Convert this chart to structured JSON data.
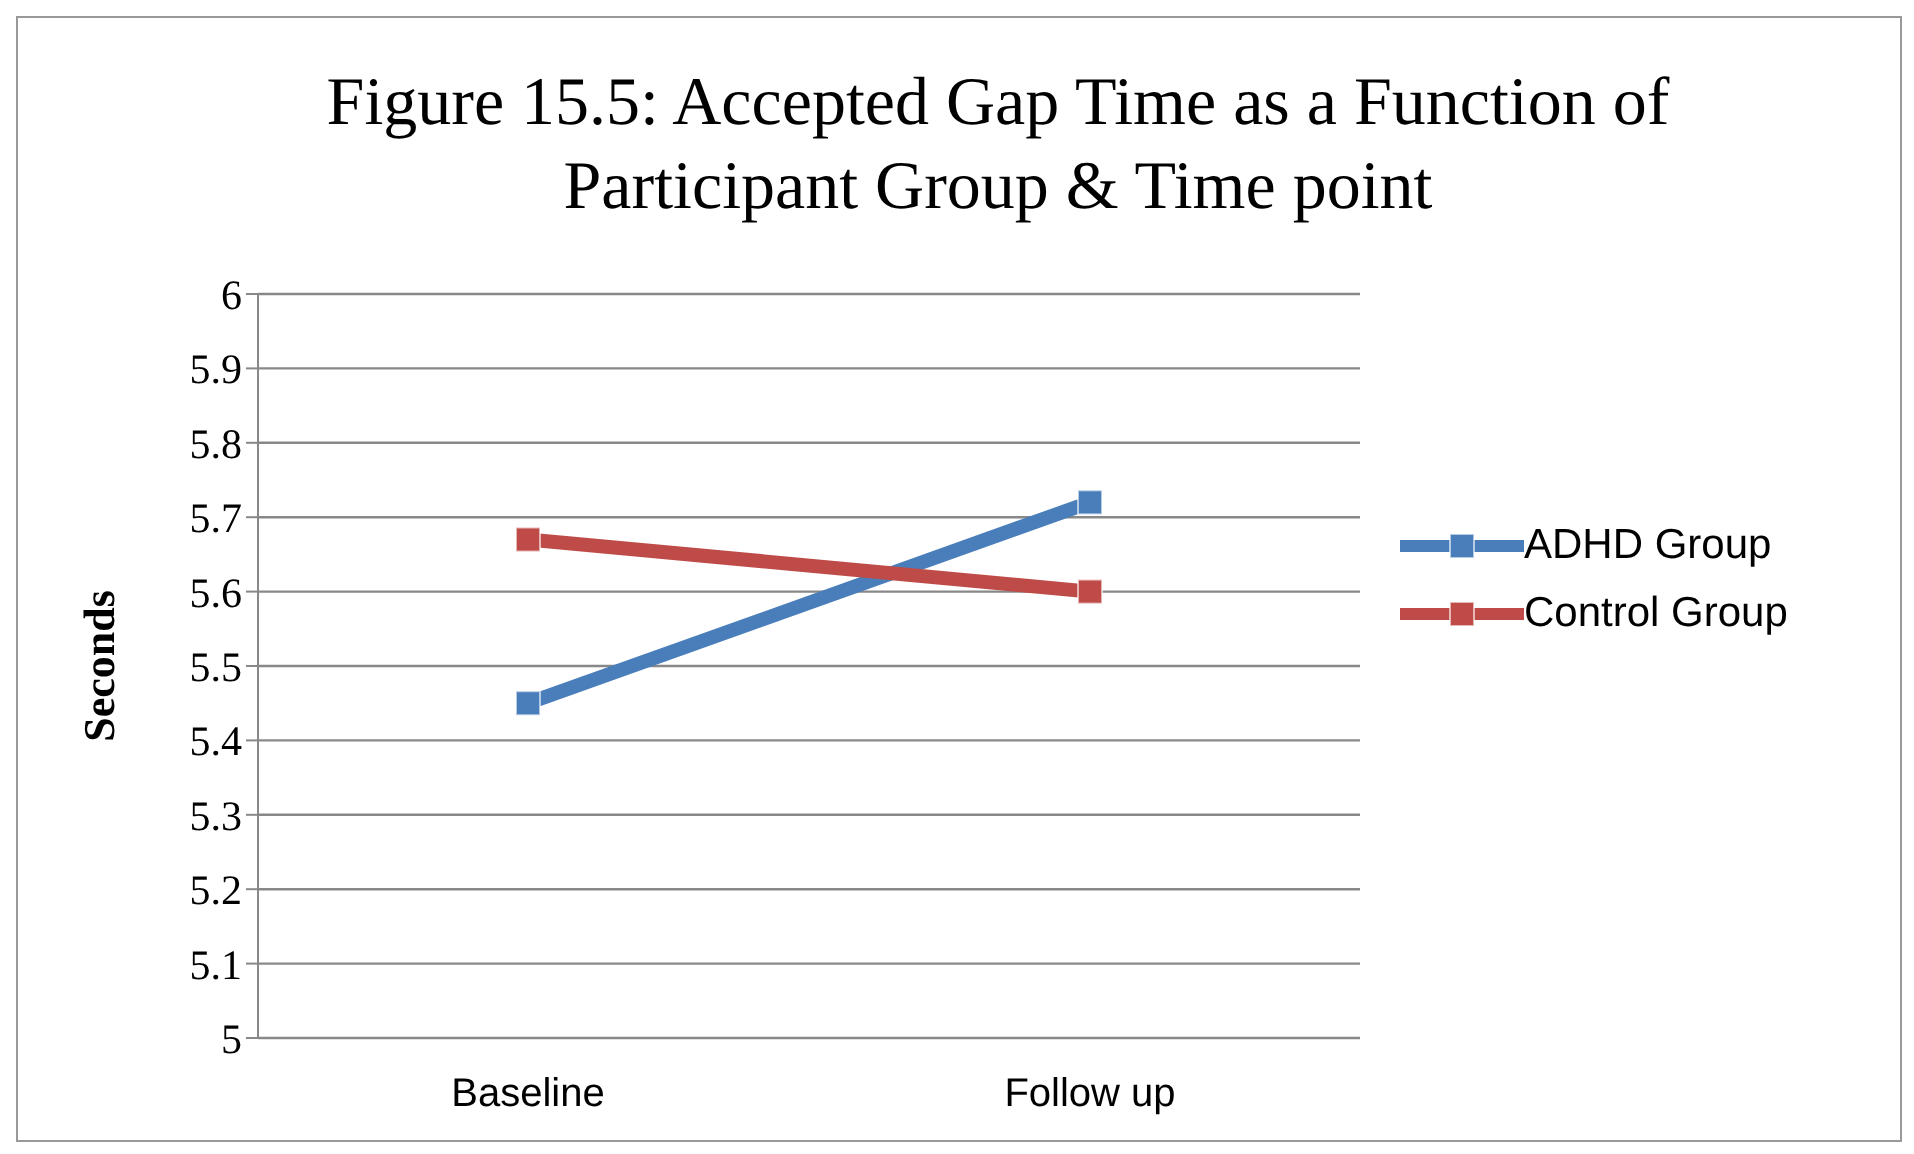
{
  "chart_data": {
    "type": "line",
    "title": "Figure 15.5: Accepted Gap Time as a Function of Participant Group & Time point",
    "ylabel": "Seconds",
    "categories": [
      "Baseline",
      "Follow up"
    ],
    "series": [
      {
        "name": "ADHD Group",
        "color": "#4a7ebb",
        "values": [
          5.45,
          5.72
        ]
      },
      {
        "name": "Control Group",
        "color": "#be4b48",
        "values": [
          5.67,
          5.6
        ]
      }
    ],
    "ylim": [
      5,
      6
    ],
    "yticks": [
      5,
      5.1,
      5.2,
      5.3,
      5.4,
      5.5,
      5.6,
      5.7,
      5.8,
      5.9,
      6
    ],
    "grid": "y",
    "legend": "right",
    "marker": "square",
    "line_style": "solid"
  }
}
